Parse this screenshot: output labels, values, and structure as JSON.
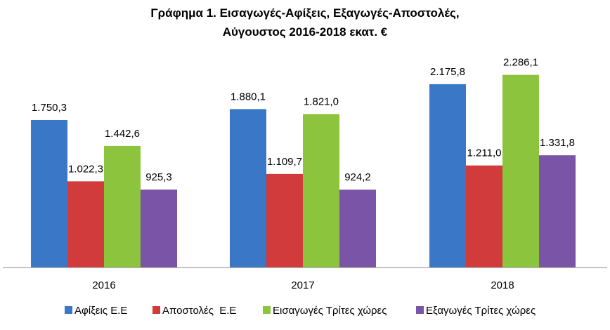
{
  "chart_data": {
    "type": "bar",
    "title_lines": [
      "Γράφημα 1. Εισαγωγές-Αφίξεις, Εξαγωγές-Αποστολές,",
      "Αύγουστος 2016-2018 εκατ. €"
    ],
    "categories": [
      "2016",
      "2017",
      "2018"
    ],
    "ylim": [
      0,
      2500
    ],
    "grid": false,
    "legend_position": "bottom",
    "series": [
      {
        "name": "Αφίξεις Ε.Ε",
        "color": "#3A77C6",
        "values": [
          1750.3,
          1880.1,
          2175.8
        ],
        "labels": [
          "1.750,3",
          "1.880,1",
          "2.175,8"
        ]
      },
      {
        "name": "Αποστολές  Ε.Ε",
        "color": "#D13B3B",
        "values": [
          1022.3,
          1109.7,
          1211.0
        ],
        "labels": [
          "1.022,3",
          "1.109,7",
          "1.211,0"
        ]
      },
      {
        "name": "Εισαγωγές Τρίτες χώρες",
        "color": "#8CC43D",
        "values": [
          1442.6,
          1821.0,
          2286.1
        ],
        "labels": [
          "1.442,6",
          "1.821,0",
          "2.286,1"
        ]
      },
      {
        "name": "Εξαγωγές Τρίτες χώρες",
        "color": "#7A54A7",
        "values": [
          925.3,
          924.2,
          1331.8
        ],
        "labels": [
          "925,3",
          "924,2",
          "1.331,8"
        ]
      }
    ]
  }
}
